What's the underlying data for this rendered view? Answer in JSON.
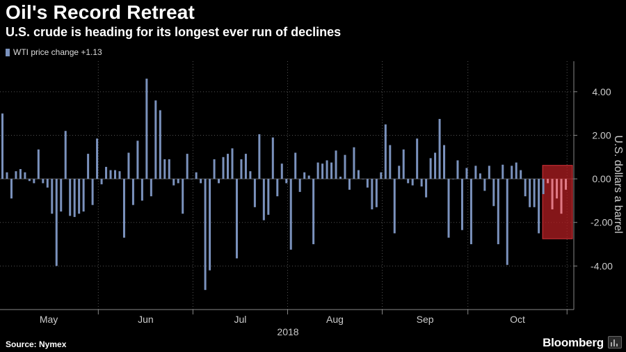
{
  "header": {
    "title": "Oil's Record Retreat",
    "subtitle": "U.S. crude is heading for its longest ever run of declines"
  },
  "footer": {
    "source": "Source: Nymex",
    "brand": "Bloomberg"
  },
  "colors": {
    "bar": "#7b92bd",
    "highlight_fill": "#b01e22",
    "highlight_bar": "#e07a86",
    "axis": "#888888",
    "grid": "#555555"
  },
  "chart_data": {
    "type": "bar",
    "legend": {
      "label": "WTI price change +1.13",
      "placement": "top-left"
    },
    "ylabel": "U.S. dollars a barrel",
    "ylim": [
      -6,
      5.4
    ],
    "yticks": [
      4,
      2,
      0,
      -2,
      -4
    ],
    "ytick_labels": [
      "4.00",
      "2.00",
      "0.00",
      "-2.00",
      "-4.00"
    ],
    "grid": true,
    "year_label": "2018",
    "months": [
      {
        "label": "May",
        "start_index": 0
      },
      {
        "label": "Jun",
        "start_index": 22
      },
      {
        "label": "Jul",
        "start_index": 43
      },
      {
        "label": "Aug",
        "start_index": 64
      },
      {
        "label": "Sep",
        "start_index": 85
      },
      {
        "label": "Oct",
        "start_index": 104
      }
    ],
    "highlight_start_index": 121,
    "values": [
      3.0,
      0.3,
      -0.9,
      0.35,
      0.45,
      0.3,
      -0.1,
      -0.2,
      1.35,
      -0.2,
      -0.4,
      -1.6,
      -4.0,
      -1.5,
      2.2,
      -1.7,
      -1.75,
      -1.6,
      -1.5,
      1.15,
      -1.2,
      1.85,
      -0.25,
      0.55,
      0.4,
      0.4,
      0.35,
      -2.7,
      1.2,
      -1.2,
      1.75,
      -1.0,
      4.6,
      -0.8,
      3.6,
      3.15,
      0.9,
      0.9,
      -0.3,
      -0.2,
      -1.6,
      1.15,
      0.0,
      0.3,
      -0.2,
      -5.1,
      -4.2,
      0.9,
      -0.2,
      1.0,
      1.15,
      1.4,
      -3.65,
      0.9,
      1.15,
      0.35,
      -1.3,
      2.05,
      -1.9,
      -1.65,
      1.9,
      -0.8,
      0.7,
      -0.2,
      -3.25,
      1.2,
      -0.6,
      0.3,
      0.15,
      -3.0,
      0.75,
      0.7,
      0.85,
      0.75,
      1.3,
      0.1,
      1.1,
      -0.5,
      1.45,
      0.4,
      0.0,
      -0.4,
      -1.4,
      -1.3,
      0.3,
      2.5,
      1.55,
      -2.5,
      0.6,
      1.35,
      -0.2,
      -0.3,
      1.85,
      -0.35,
      -0.85,
      0.95,
      1.2,
      2.75,
      1.55,
      -2.7,
      0.0,
      0.85,
      -2.35,
      0.5,
      -3.0,
      0.6,
      0.25,
      -0.55,
      0.6,
      -1.25,
      -3.0,
      0.65,
      -3.95,
      0.6,
      0.75,
      0.4,
      -0.8,
      -1.3,
      -1.3,
      -2.5,
      -0.7,
      -0.2,
      -1.4,
      -0.9,
      -1.6,
      -0.5
    ]
  }
}
